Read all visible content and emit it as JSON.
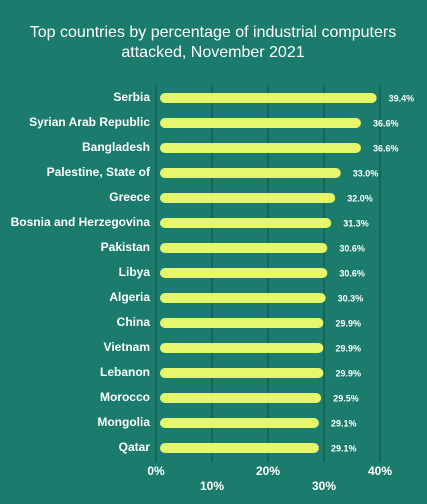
{
  "chart_data": {
    "type": "bar",
    "orientation": "horizontal",
    "title": [
      "Top countries by percentage of industrial computers",
      "attacked, November 2021"
    ],
    "categories": [
      "Serbia",
      "Syrian Arab Republic",
      "Bangladesh",
      "Palestine, State of",
      "Greece",
      "Bosnia and Herzegovina",
      "Pakistan",
      "Libya",
      "Algeria",
      "China",
      "Vietnam",
      "Lebanon",
      "Morocco",
      "Mongolia",
      "Qatar"
    ],
    "values": [
      39.4,
      36.6,
      36.6,
      33.0,
      32.0,
      31.3,
      30.6,
      30.6,
      30.3,
      29.9,
      29.9,
      29.9,
      29.5,
      29.1,
      29.1
    ],
    "value_labels": [
      "39.4%",
      "36.6%",
      "36.6%",
      "33.0%",
      "32.0%",
      "31.3%",
      "30.6%",
      "30.6%",
      "30.3%",
      "29.9%",
      "29.9%",
      "29.9%",
      "29.5%",
      "29.1%",
      "29.1%"
    ],
    "color": "#e6f76b",
    "xlim": [
      0,
      40
    ],
    "xticks": [
      {
        "value": 0,
        "label": "0%"
      },
      {
        "value": 10,
        "label": "10%"
      },
      {
        "value": 20,
        "label": "20%"
      },
      {
        "value": 30,
        "label": "30%"
      },
      {
        "value": 40,
        "label": "40%"
      }
    ],
    "grid": true
  }
}
